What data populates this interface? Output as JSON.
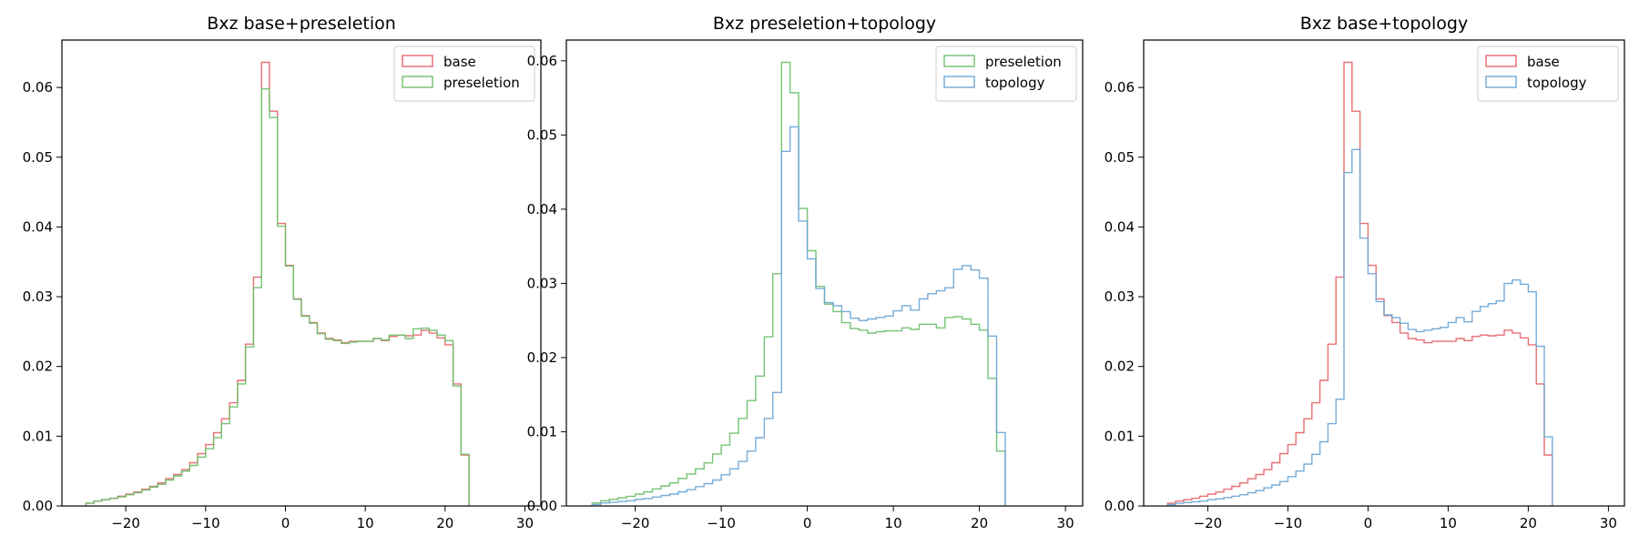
{
  "chart_data": [
    {
      "type": "histogram",
      "title": "Bxz base+preseletion",
      "xlim": [
        -28,
        32
      ],
      "ylim": [
        0,
        0.0668
      ],
      "xticks": [
        -20,
        -10,
        0,
        10,
        20,
        30
      ],
      "yticks": [
        0,
        0.01,
        0.02,
        0.03,
        0.04,
        0.05,
        0.06
      ],
      "xtick_labels": [
        "−20",
        "−10",
        "0",
        "10",
        "20",
        "30"
      ],
      "ytick_labels": [
        "0.00",
        "0.01",
        "0.02",
        "0.03",
        "0.04",
        "0.05",
        "0.06"
      ],
      "bin_start": -25,
      "bin_width": 1,
      "legend": "top-right",
      "series": [
        {
          "name": "base",
          "color": "#e6676b",
          "values": [
            0.0004,
            0.0007,
            0.0009,
            0.0011,
            0.0014,
            0.0017,
            0.002,
            0.0024,
            0.0028,
            0.0033,
            0.0039,
            0.0045,
            0.0052,
            0.0062,
            0.0075,
            0.0088,
            0.0105,
            0.0125,
            0.0148,
            0.018,
            0.0232,
            0.0328,
            0.0636,
            0.0566,
            0.0405,
            0.0345,
            0.0297,
            0.0273,
            0.0263,
            0.0248,
            0.024,
            0.0238,
            0.0234,
            0.0236,
            0.0236,
            0.0236,
            0.024,
            0.0237,
            0.0243,
            0.0245,
            0.0244,
            0.0245,
            0.0252,
            0.0248,
            0.0241,
            0.0231,
            0.0175,
            0.0073
          ]
        },
        {
          "name": "preseletion",
          "color": "#6ec06e",
          "values": [
            0.0004,
            0.0007,
            0.0009,
            0.0011,
            0.0013,
            0.0016,
            0.0019,
            0.0023,
            0.0027,
            0.0031,
            0.0037,
            0.0043,
            0.005,
            0.0058,
            0.007,
            0.0082,
            0.0098,
            0.0118,
            0.0142,
            0.0175,
            0.0228,
            0.0313,
            0.0598,
            0.0557,
            0.0401,
            0.0344,
            0.0296,
            0.0272,
            0.0262,
            0.0247,
            0.0239,
            0.0237,
            0.0233,
            0.0235,
            0.0236,
            0.0236,
            0.024,
            0.0238,
            0.0245,
            0.0245,
            0.024,
            0.0254,
            0.0255,
            0.0252,
            0.0245,
            0.0237,
            0.0172,
            0.0074
          ]
        }
      ]
    },
    {
      "type": "histogram",
      "title": "Bxz preseletion+topology",
      "xlim": [
        -28,
        32
      ],
      "ylim": [
        0,
        0.0628
      ],
      "xticks": [
        -20,
        -10,
        0,
        10,
        20,
        30
      ],
      "yticks": [
        0,
        0.01,
        0.02,
        0.03,
        0.04,
        0.05,
        0.06
      ],
      "xtick_labels": [
        "−20",
        "−10",
        "0",
        "10",
        "20",
        "30"
      ],
      "ytick_labels": [
        "0.00",
        "0.01",
        "0.02",
        "0.03",
        "0.04",
        "0.05",
        "0.06"
      ],
      "bin_start": -25,
      "bin_width": 1,
      "legend": "top-right",
      "series": [
        {
          "name": "preseletion",
          "color": "#6ec06e",
          "values": [
            0.0004,
            0.0007,
            0.0009,
            0.0011,
            0.0013,
            0.0016,
            0.0019,
            0.0023,
            0.0027,
            0.0031,
            0.0037,
            0.0043,
            0.005,
            0.0058,
            0.007,
            0.0082,
            0.0098,
            0.0118,
            0.0142,
            0.0175,
            0.0228,
            0.0313,
            0.0598,
            0.0557,
            0.0401,
            0.0344,
            0.0296,
            0.0272,
            0.0262,
            0.0247,
            0.0239,
            0.0237,
            0.0233,
            0.0235,
            0.0236,
            0.0236,
            0.024,
            0.0238,
            0.0245,
            0.0245,
            0.024,
            0.0254,
            0.0255,
            0.0252,
            0.0245,
            0.0237,
            0.0172,
            0.0074
          ]
        },
        {
          "name": "topology",
          "color": "#6fa8d6",
          "values": [
            0.0002,
            0.0004,
            0.0005,
            0.0006,
            0.0007,
            0.0009,
            0.001,
            0.0012,
            0.0014,
            0.0016,
            0.0019,
            0.0022,
            0.0026,
            0.003,
            0.0035,
            0.0042,
            0.005,
            0.006,
            0.0074,
            0.0092,
            0.0118,
            0.0153,
            0.0478,
            0.0511,
            0.0384,
            0.0333,
            0.0293,
            0.0274,
            0.027,
            0.0262,
            0.0253,
            0.025,
            0.0252,
            0.0254,
            0.0256,
            0.0263,
            0.027,
            0.0264,
            0.0279,
            0.0286,
            0.029,
            0.0294,
            0.0319,
            0.0324,
            0.0318,
            0.0307,
            0.0229,
            0.0099
          ]
        }
      ]
    },
    {
      "type": "histogram",
      "title": "Bxz base+topology",
      "xlim": [
        -28,
        32
      ],
      "ylim": [
        0,
        0.0668
      ],
      "xticks": [
        -20,
        -10,
        0,
        10,
        20,
        30
      ],
      "yticks": [
        0,
        0.01,
        0.02,
        0.03,
        0.04,
        0.05,
        0.06
      ],
      "xtick_labels": [
        "−20",
        "−10",
        "0",
        "10",
        "20",
        "30"
      ],
      "ytick_labels": [
        "0.00",
        "0.01",
        "0.02",
        "0.03",
        "0.04",
        "0.05",
        "0.06"
      ],
      "bin_start": -25,
      "bin_width": 1,
      "legend": "top-right",
      "series": [
        {
          "name": "base",
          "color": "#e6676b",
          "values": [
            0.0004,
            0.0007,
            0.0009,
            0.0011,
            0.0014,
            0.0017,
            0.002,
            0.0024,
            0.0028,
            0.0033,
            0.0039,
            0.0045,
            0.0052,
            0.0062,
            0.0075,
            0.0088,
            0.0105,
            0.0125,
            0.0148,
            0.018,
            0.0232,
            0.0328,
            0.0636,
            0.0566,
            0.0405,
            0.0345,
            0.0297,
            0.0273,
            0.0263,
            0.0248,
            0.024,
            0.0238,
            0.0234,
            0.0236,
            0.0236,
            0.0236,
            0.024,
            0.0237,
            0.0243,
            0.0245,
            0.0244,
            0.0245,
            0.0252,
            0.0248,
            0.0241,
            0.0231,
            0.0175,
            0.0073
          ]
        },
        {
          "name": "topology",
          "color": "#6fa8d6",
          "values": [
            0.0002,
            0.0004,
            0.0005,
            0.0006,
            0.0007,
            0.0009,
            0.001,
            0.0012,
            0.0014,
            0.0016,
            0.0019,
            0.0022,
            0.0026,
            0.003,
            0.0035,
            0.0042,
            0.005,
            0.006,
            0.0074,
            0.0092,
            0.0118,
            0.0153,
            0.0478,
            0.0511,
            0.0384,
            0.0333,
            0.0293,
            0.0274,
            0.027,
            0.0262,
            0.0253,
            0.025,
            0.0252,
            0.0254,
            0.0256,
            0.0263,
            0.027,
            0.0264,
            0.0279,
            0.0286,
            0.029,
            0.0294,
            0.0319,
            0.0324,
            0.0318,
            0.0307,
            0.0229,
            0.0099
          ]
        }
      ]
    }
  ]
}
